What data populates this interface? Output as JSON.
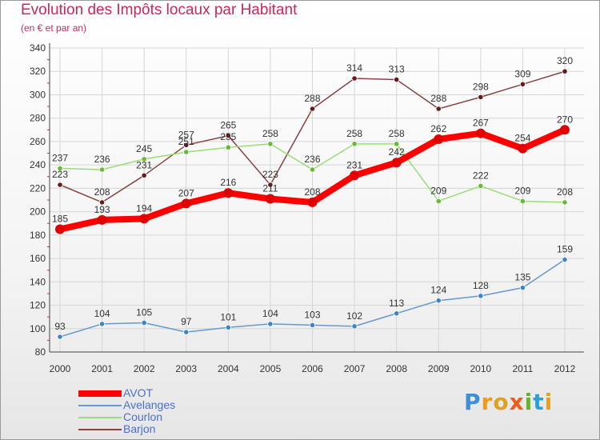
{
  "header": {
    "title": "Evolution des Impôts locaux par Habitant",
    "subtitle": "(en € et par an)"
  },
  "logo": {
    "letters": [
      {
        "ch": "P",
        "color": "#3c8fd8"
      },
      {
        "ch": "r",
        "color": "#f09a1a"
      },
      {
        "ch": "o",
        "color": "#e0a020"
      },
      {
        "ch": "x",
        "color": "#f05a1a"
      },
      {
        "ch": "i",
        "color": "#68b030"
      },
      {
        "ch": "t",
        "color": "#2d9fd8"
      },
      {
        "ch": "i",
        "color": "#e8a020"
      }
    ]
  },
  "chart_data": {
    "type": "line",
    "title": "Evolution des Impôts locaux par Habitant",
    "subtitle": "(en € et par an)",
    "categories": [
      "2000",
      "2001",
      "2002",
      "2003",
      "2004",
      "2005",
      "2006",
      "2007",
      "2008",
      "2009",
      "2010",
      "2011",
      "2012"
    ],
    "ylim": [
      80,
      340
    ],
    "yticks": [
      80,
      100,
      120,
      140,
      160,
      180,
      200,
      220,
      240,
      260,
      280,
      300,
      320,
      340
    ],
    "grid": true,
    "legend_position": "bottom-left",
    "series": [
      {
        "name": "AVOT",
        "color": "#ff0000",
        "width": 8,
        "marker": "#e00000",
        "values": [
          185,
          193,
          194,
          207,
          216,
          211,
          208,
          231,
          242,
          262,
          267,
          254,
          270
        ]
      },
      {
        "name": "Avelanges",
        "color": "#6699cc",
        "width": 1.5,
        "marker": "#3d85c6",
        "values": [
          93,
          104,
          105,
          97,
          101,
          104,
          103,
          102,
          113,
          124,
          128,
          135,
          159
        ]
      },
      {
        "name": "Courlon",
        "color": "#99dd77",
        "width": 1.5,
        "marker": "#66bb33",
        "values": [
          237,
          236,
          245,
          251,
          255,
          258,
          236,
          258,
          258,
          209,
          222,
          209,
          208
        ]
      },
      {
        "name": "Barjon",
        "color": "#884444",
        "width": 1.5,
        "marker": "#661a1a",
        "values": [
          223,
          208,
          231,
          257,
          265,
          223,
          288,
          314,
          313,
          288,
          298,
          309,
          320
        ]
      }
    ]
  }
}
